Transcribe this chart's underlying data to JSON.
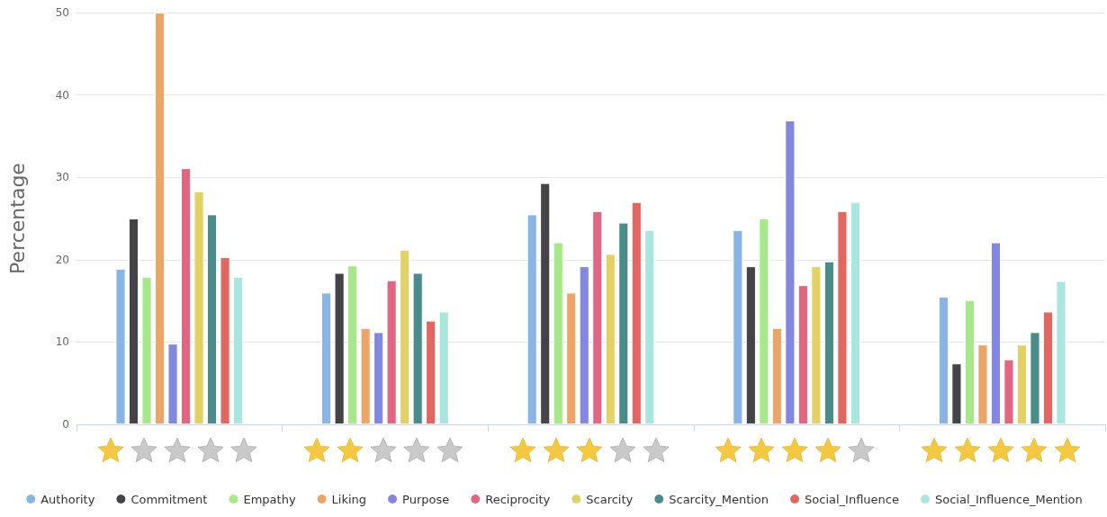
{
  "chart_data": {
    "type": "bar",
    "ylabel": "Percentage",
    "categories": [
      null,
      null,
      null,
      null,
      null
    ],
    "series": [
      {
        "name": "Authority",
        "color": "#88b5e6",
        "values": [
          18.9,
          16.0,
          25.5,
          23.6,
          15.5
        ]
      },
      {
        "name": "Commitment",
        "color": "#434348",
        "values": [
          25.0,
          18.4,
          29.3,
          19.2,
          7.4
        ]
      },
      {
        "name": "Empathy",
        "color": "#a6e88a",
        "values": [
          17.9,
          19.3,
          22.1,
          25.0,
          15.1
        ]
      },
      {
        "name": "Liking",
        "color": "#eba566",
        "values": [
          50,
          11.7,
          16.0,
          11.7,
          9.7
        ]
      },
      {
        "name": "Purpose",
        "color": "#8487e0",
        "values": [
          9.8,
          11.2,
          19.2,
          36.9,
          22.1
        ]
      },
      {
        "name": "Reciprocity",
        "color": "#e06683",
        "values": [
          31.1,
          17.5,
          25.9,
          16.9,
          7.9
        ]
      },
      {
        "name": "Scarcity",
        "color": "#e2d266",
        "values": [
          28.3,
          21.2,
          20.7,
          19.2,
          9.7
        ]
      },
      {
        "name": "Scarcity_Mention",
        "color": "#4a8c89",
        "values": [
          25.5,
          18.4,
          24.5,
          19.8,
          11.2
        ]
      },
      {
        "name": "Social_Influence",
        "color": "#e26661",
        "values": [
          20.3,
          12.6,
          27.0,
          25.9,
          13.7
        ]
      },
      {
        "name": "Social_Influence_Mention",
        "color": "#a8e6df",
        "values": [
          17.9,
          13.7,
          23.6,
          27.0,
          17.4
        ]
      }
    ],
    "ylim": [
      0,
      50
    ],
    "yticks": [
      0,
      10,
      20,
      30,
      40,
      50
    ],
    "grid": "y",
    "legend": "bottom"
  }
}
